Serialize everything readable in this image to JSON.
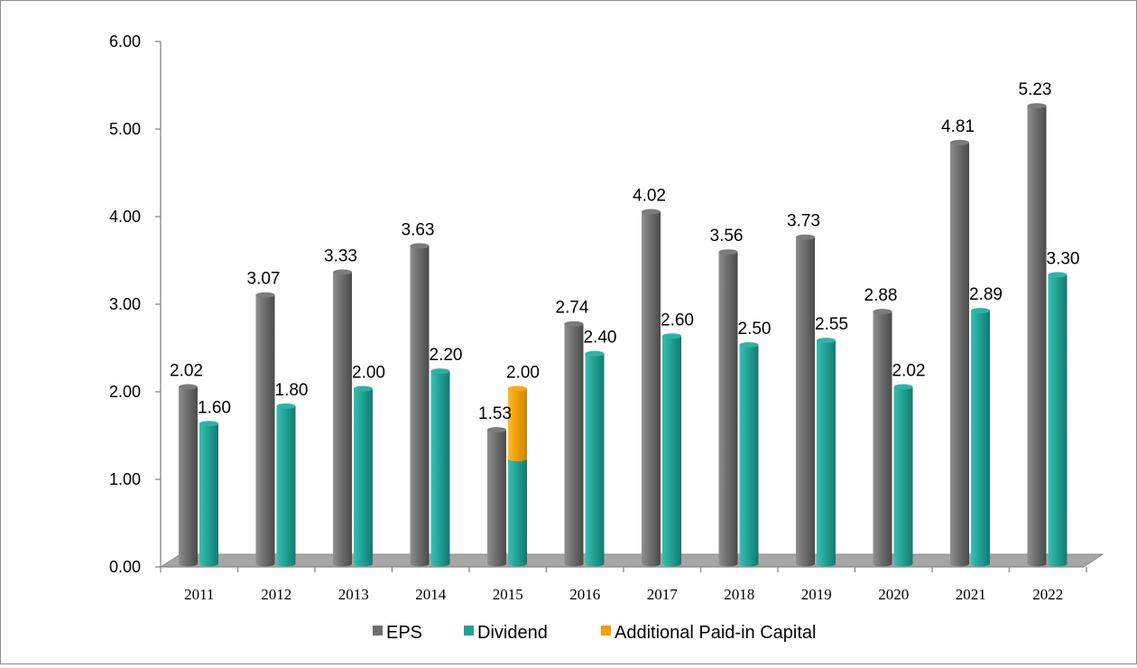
{
  "chart_data": {
    "type": "bar",
    "categories": [
      "2011",
      "2012",
      "2013",
      "2014",
      "2015",
      "2016",
      "2017",
      "2018",
      "2019",
      "2020",
      "2021",
      "2022"
    ],
    "series": [
      {
        "name": "EPS",
        "color": "#6e6e6e",
        "values": [
          2.02,
          3.07,
          3.33,
          3.63,
          1.53,
          2.74,
          4.02,
          3.56,
          3.73,
          2.88,
          4.81,
          5.23
        ]
      },
      {
        "name": "Dividend",
        "color": "#20a396",
        "values": [
          1.6,
          1.8,
          2.0,
          2.2,
          1.2,
          2.4,
          2.6,
          2.5,
          2.55,
          2.02,
          2.89,
          3.3
        ]
      },
      {
        "name": "Additional Paid-in Capital",
        "color": "#f0a000",
        "values": [
          0,
          0,
          0,
          0,
          0.8,
          0,
          0,
          0,
          0,
          0,
          0,
          0
        ]
      }
    ],
    "data_labels": {
      "EPS": [
        "2.02",
        "3.07",
        "3.33",
        "3.63",
        "1.53",
        "2.74",
        "4.02",
        "3.56",
        "3.73",
        "2.88",
        "4.81",
        "5.23"
      ],
      "Dividend": [
        "1.60",
        "1.80",
        "2.00",
        "2.20",
        "2.00",
        "2.40",
        "2.60",
        "2.50",
        "2.55",
        "2.02",
        "2.89",
        "3.30"
      ]
    },
    "stacked": {
      "Dividend": "Additional Paid-in Capital"
    },
    "yticks": [
      "0.00",
      "1.00",
      "2.00",
      "3.00",
      "4.00",
      "5.00",
      "6.00"
    ],
    "ylim": [
      0,
      6
    ],
    "title": "",
    "xlabel": "",
    "ylabel": "",
    "grid": false,
    "legend": "bottom"
  }
}
